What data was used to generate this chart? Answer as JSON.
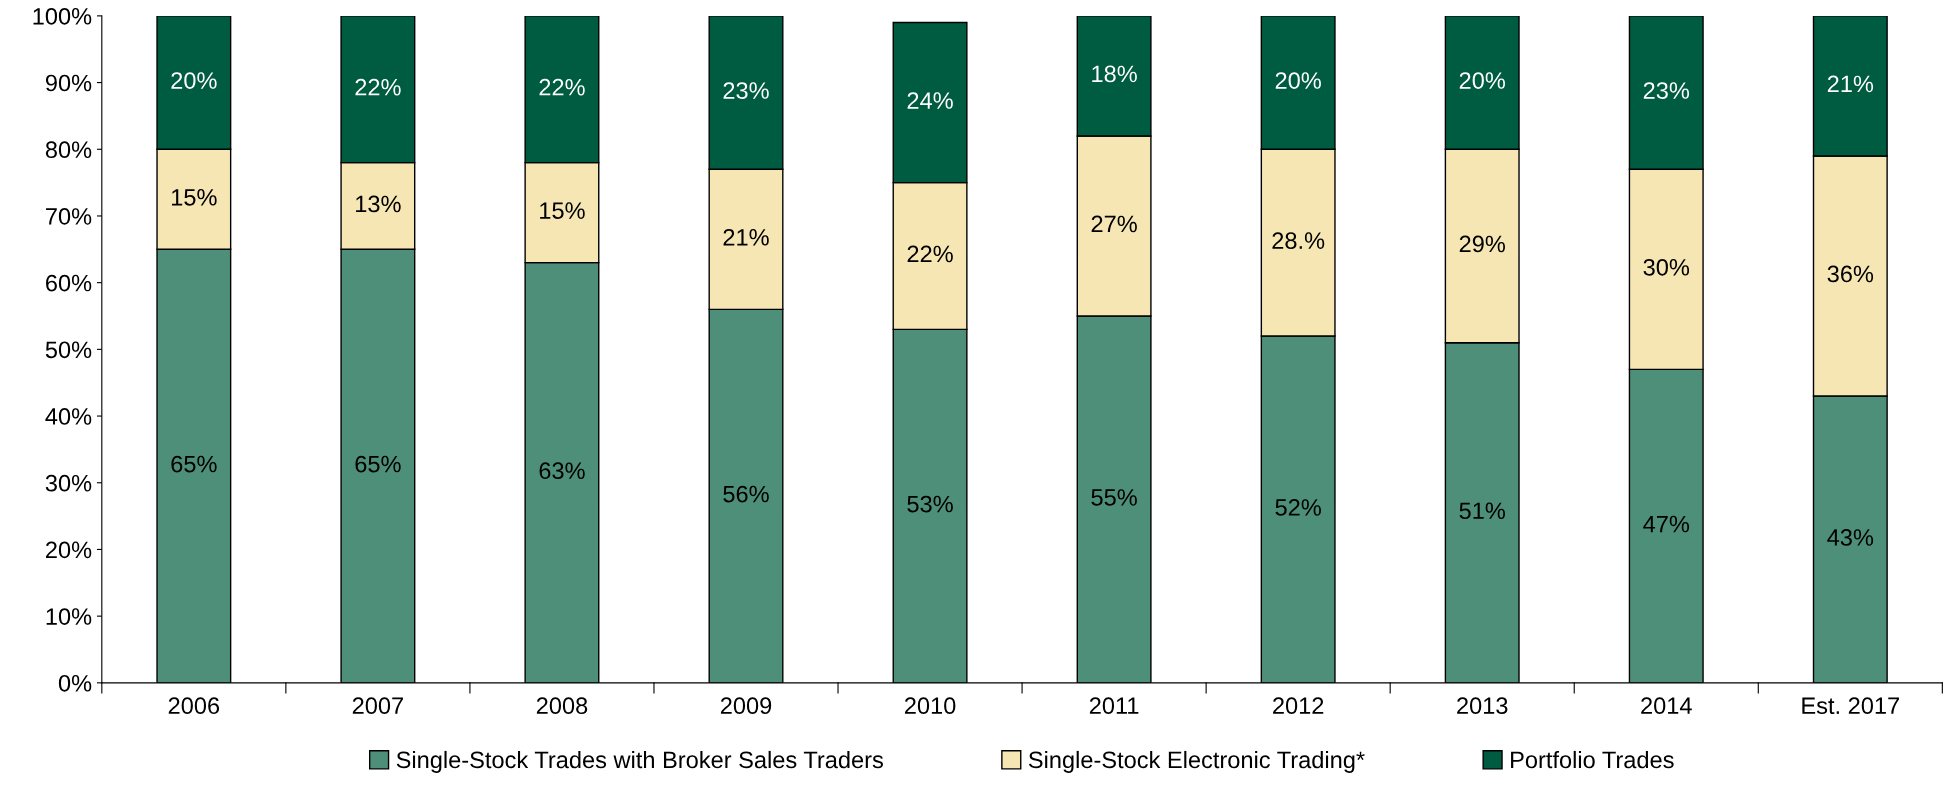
{
  "chart_data": {
    "type": "bar",
    "stacked": true,
    "categories": [
      "2006",
      "2007",
      "2008",
      "2009",
      "2010",
      "2011",
      "2012",
      "2013",
      "2014",
      "Est. 2017"
    ],
    "series": [
      {
        "name": "Single-Stock Trades with Broker Sales Traders",
        "color": "#4e8f7a",
        "values": [
          65,
          65,
          63,
          56,
          53,
          55,
          52,
          51,
          47,
          43
        ],
        "value_labels": [
          "65%",
          "65%",
          "63%",
          "56%",
          "53%",
          "55%",
          "52%",
          "51%",
          "47%",
          "43%"
        ]
      },
      {
        "name": "Single-Stock Electronic Trading*",
        "color": "#f5e6b4",
        "values": [
          15,
          13,
          15,
          21,
          22,
          27,
          28,
          29,
          30,
          36
        ],
        "value_labels": [
          "15%",
          "13%",
          "15%",
          "21%",
          "22%",
          "27%",
          "28.%",
          "29%",
          "30%",
          "36%"
        ]
      },
      {
        "name": "Portfolio Trades",
        "color": "#005c40",
        "values": [
          20,
          22,
          22,
          23,
          24,
          18,
          20,
          20,
          23,
          21
        ],
        "value_labels": [
          "20%",
          "22%",
          "22%",
          "23%",
          "24%",
          "18%",
          "20%",
          "20%",
          "23%",
          "21%"
        ]
      }
    ],
    "ylim": [
      0,
      100
    ],
    "yticks": [
      {
        "value": 0,
        "label": "0%"
      },
      {
        "value": 10,
        "label": "10%"
      },
      {
        "value": 20,
        "label": "20%"
      },
      {
        "value": 30,
        "label": "30%"
      },
      {
        "value": 40,
        "label": "40%"
      },
      {
        "value": 50,
        "label": "50%"
      },
      {
        "value": 60,
        "label": "60%"
      },
      {
        "value": 70,
        "label": "70%"
      },
      {
        "value": 80,
        "label": "80%"
      },
      {
        "value": 90,
        "label": "90%"
      },
      {
        "value": 100,
        "label": "100%"
      }
    ],
    "grid": false,
    "legend": "bottom"
  }
}
